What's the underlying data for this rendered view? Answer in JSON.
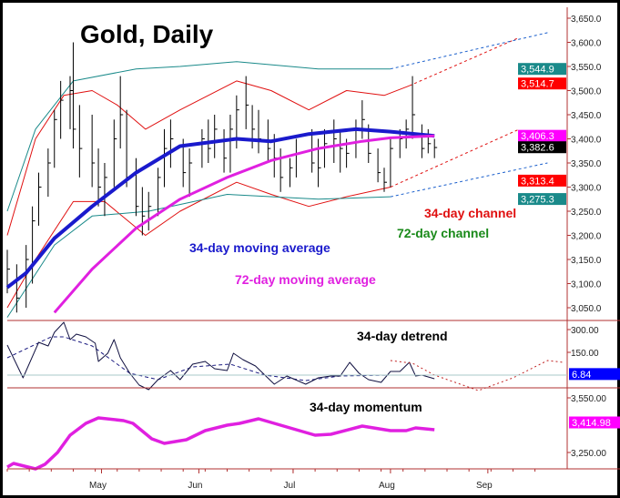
{
  "chart_data": {
    "type": "line",
    "title": "Gold, Daily",
    "price_panel": {
      "ylim": [
        3020,
        3670
      ],
      "yticks": [
        "3,650.0",
        "3,600.0",
        "3,550.0",
        "3,500.0",
        "3,450.0",
        "3,400.0",
        "3,350.0",
        "3,300.0",
        "3,250.0",
        "3,200.0",
        "3,150.0",
        "3,100.0",
        "3,050.0"
      ],
      "ytick_values": [
        3650,
        3600,
        3550,
        3500,
        3450,
        3400,
        3350,
        3300,
        3250,
        3200,
        3150,
        3100,
        3050
      ],
      "bars": [
        [
          "Apr 1",
          3170,
          3080,
          3130
        ],
        [
          "Apr 4",
          3140,
          3040,
          3070
        ],
        [
          "Apr 7",
          3180,
          3050,
          3150
        ],
        [
          "Apr 9",
          3260,
          3100,
          3230
        ],
        [
          "Apr 11",
          3330,
          3220,
          3300
        ],
        [
          "Apr 14",
          3380,
          3280,
          3350
        ],
        [
          "Apr 16",
          3460,
          3340,
          3440
        ],
        [
          "Apr 18",
          3520,
          3400,
          3480
        ],
        [
          "Apr 21",
          3530,
          3420,
          3500
        ],
        [
          "Apr 22",
          3600,
          3380,
          3420
        ],
        [
          "Apr 24",
          3470,
          3320,
          3380
        ],
        [
          "Apr 28",
          3450,
          3300,
          3350
        ],
        [
          "Apr 30",
          3380,
          3260,
          3300
        ],
        [
          "May 2",
          3350,
          3240,
          3320
        ],
        [
          "May 5",
          3440,
          3300,
          3400
        ],
        [
          "May 7",
          3530,
          3380,
          3450
        ],
        [
          "May 9",
          3460,
          3300,
          3320
        ],
        [
          "May 12",
          3360,
          3240,
          3260
        ],
        [
          "May 14",
          3300,
          3200,
          3240
        ],
        [
          "May 16",
          3290,
          3210,
          3260
        ],
        [
          "May 19",
          3340,
          3240,
          3320
        ],
        [
          "May 21",
          3420,
          3300,
          3380
        ],
        [
          "May 23",
          3440,
          3340,
          3400
        ],
        [
          "May 27",
          3400,
          3300,
          3330
        ],
        [
          "May 29",
          3380,
          3280,
          3350
        ],
        [
          "Jun 2",
          3420,
          3340,
          3400
        ],
        [
          "Jun 4",
          3440,
          3350,
          3380
        ],
        [
          "Jun 6",
          3450,
          3360,
          3420
        ],
        [
          "Jun 9",
          3420,
          3330,
          3360
        ],
        [
          "Jun 11",
          3450,
          3330,
          3420
        ],
        [
          "Jun 13",
          3490,
          3380,
          3460
        ],
        [
          "Jun 16",
          3530,
          3420,
          3470
        ],
        [
          "Jun 18",
          3470,
          3380,
          3420
        ],
        [
          "Jun 20",
          3460,
          3370,
          3400
        ],
        [
          "Jun 23",
          3440,
          3350,
          3380
        ],
        [
          "Jun 25",
          3410,
          3320,
          3360
        ],
        [
          "Jun 27",
          3380,
          3290,
          3320
        ],
        [
          "Jun 30",
          3360,
          3300,
          3340
        ],
        [
          "Jul 2",
          3400,
          3320,
          3370
        ],
        [
          "Jul 7",
          3420,
          3330,
          3350
        ],
        [
          "Jul 9",
          3400,
          3300,
          3340
        ],
        [
          "Jul 11",
          3420,
          3340,
          3390
        ],
        [
          "Jul 14",
          3440,
          3350,
          3400
        ],
        [
          "Jul 16",
          3420,
          3330,
          3380
        ],
        [
          "Jul 18",
          3400,
          3340,
          3370
        ],
        [
          "Jul 21",
          3440,
          3360,
          3420
        ],
        [
          "Jul 23",
          3480,
          3400,
          3440
        ],
        [
          "Jul 25",
          3430,
          3350,
          3370
        ],
        [
          "Jul 28",
          3380,
          3310,
          3330
        ],
        [
          "Jul 30",
          3340,
          3290,
          3310
        ],
        [
          "Aug 1",
          3400,
          3300,
          3380
        ],
        [
          "Aug 4",
          3420,
          3360,
          3400
        ],
        [
          "Aug 6",
          3440,
          3380,
          3420
        ],
        [
          "Aug 8",
          3530,
          3400,
          3450
        ],
        [
          "Aug 11",
          3430,
          3360,
          3380
        ],
        [
          "Aug 13",
          3420,
          3370,
          3390
        ],
        [
          "Aug 15",
          3400,
          3360,
          3382
        ]
      ],
      "series": [
        {
          "name": "34-day moving average",
          "color": "#1a1acc",
          "width": 4,
          "points": [
            [
              "Apr 1",
              3092
            ],
            [
              "Apr 7",
              3122
            ],
            [
              "Apr 16",
              3194
            ],
            [
              "Apr 28",
              3260
            ],
            [
              "May 12",
              3330
            ],
            [
              "May 26",
              3385
            ],
            [
              "Jun 13",
              3400
            ],
            [
              "Jun 24",
              3395
            ],
            [
              "Jul 6",
              3410
            ],
            [
              "Jul 21",
              3420
            ],
            [
              "Aug 1",
              3415
            ],
            [
              "Aug 15",
              3406
            ]
          ]
        },
        {
          "name": "72-day moving average",
          "color": "#e020e0",
          "width": 3,
          "points": [
            [
              "Apr 16",
              3040
            ],
            [
              "Apr 28",
              3130
            ],
            [
              "May 12",
              3215
            ],
            [
              "May 26",
              3275
            ],
            [
              "Jun 10",
              3320
            ],
            [
              "Jun 24",
              3355
            ],
            [
              "Jul 9",
              3380
            ],
            [
              "Jul 23",
              3395
            ],
            [
              "Aug 1",
              3402
            ],
            [
              "Aug 15",
              3406
            ]
          ]
        },
        {
          "name": "34-day channel",
          "color": "#e01010",
          "width": 1,
          "points": [
            [
              "Apr 1",
              3200
            ],
            [
              "Apr 10",
              3400
            ],
            [
              "Apr 19",
              3490
            ],
            [
              "Apr 28",
              3500
            ],
            [
              "May 6",
              3470
            ],
            [
              "May 15",
              3420
            ],
            [
              "May 26",
              3460
            ],
            [
              "Jun 13",
              3520
            ],
            [
              "Jun 24",
              3500
            ],
            [
              "Jul 6",
              3460
            ],
            [
              "Jul 18",
              3500
            ],
            [
              "Jul 30",
              3490
            ],
            [
              "Aug 7",
              3510
            ]
          ],
          "projection": [
            [
              "Aug 7",
              3510
            ],
            [
              "Sep 11",
              3610
            ]
          ]
        },
        {
          "name": "34-day channel",
          "color": "#e01010",
          "width": 1,
          "points": [
            [
              "Apr 1",
              3050
            ],
            [
              "Apr 10",
              3150
            ],
            [
              "Apr 22",
              3270
            ],
            [
              "May 2",
              3270
            ],
            [
              "May 15",
              3200
            ],
            [
              "May 26",
              3250
            ],
            [
              "Jun 13",
              3310
            ],
            [
              "Jun 24",
              3285
            ],
            [
              "Jul 6",
              3260
            ],
            [
              "Jul 18",
              3280
            ],
            [
              "Aug 1",
              3300
            ]
          ],
          "projection": [
            [
              "Aug 1",
              3300
            ],
            [
              "Sep 11",
              3420
            ]
          ]
        },
        {
          "name": "72-day channel",
          "color": "#1a8a8a",
          "width": 1,
          "points": [
            [
              "Apr 1",
              3250
            ],
            [
              "Apr 10",
              3420
            ],
            [
              "Apr 22",
              3520
            ],
            [
              "May 12",
              3545
            ],
            [
              "May 26",
              3550
            ],
            [
              "Jun 13",
              3560
            ],
            [
              "Jul 9",
              3545
            ],
            [
              "Aug 1",
              3545
            ]
          ],
          "projection": [
            [
              "Aug 1",
              3545
            ],
            [
              "Sep 20",
              3620
            ]
          ],
          "projection_color": "#1a5fcc"
        },
        {
          "name": "72-day channel",
          "color": "#1a8a8a",
          "width": 1,
          "points": [
            [
              "Apr 1",
              3030
            ],
            [
              "Apr 16",
              3180
            ],
            [
              "Apr 28",
              3240
            ],
            [
              "May 16",
              3250
            ],
            [
              "Jun 10",
              3285
            ],
            [
              "Jul 9",
              3275
            ],
            [
              "Aug 1",
              3280
            ]
          ],
          "projection": [
            [
              "Aug 1",
              3280
            ],
            [
              "Sep 20",
              3350
            ]
          ],
          "projection_color": "#1a5fcc"
        }
      ],
      "labels": [
        {
          "text": "34-day moving average",
          "color": "#1a1acc"
        },
        {
          "text": "72-day moving average",
          "color": "#e020e0"
        },
        {
          "text": "34-day channel",
          "color": "#e01010"
        },
        {
          "text": "72-day channel",
          "color": "#1a8a1a"
        }
      ],
      "price_tags": [
        {
          "text": "3,544.9",
          "value": 3544.9,
          "bg": "#1a8a8a"
        },
        {
          "text": "3,514.7",
          "value": 3514.7,
          "bg": "#ff0000"
        },
        {
          "text": "3,406.3",
          "value": 3406.3,
          "bg": "#ff00ff"
        },
        {
          "text": "3,382.6",
          "value": 3382.6,
          "bg": "#000000"
        },
        {
          "text": "3,313.4",
          "value": 3313.4,
          "bg": "#ff0000"
        },
        {
          "text": "3,275.3",
          "value": 3275.3,
          "bg": "#1a8a8a"
        }
      ]
    },
    "detrend_panel": {
      "label": "34-day detrend",
      "yticks": [
        "300.00",
        "150.00"
      ],
      "ytick_values": [
        300,
        150
      ],
      "tag": {
        "text": "6.84",
        "value": 6.84,
        "bg": "#0000ff"
      },
      "detrend": [
        [
          "Apr 1",
          198
        ],
        [
          "Apr 6",
          -18
        ],
        [
          "Apr 11",
          216
        ],
        [
          "Apr 14",
          192
        ],
        [
          "Apr 16",
          282
        ],
        [
          "Apr 19",
          348
        ],
        [
          "Apr 21",
          234
        ],
        [
          "Apr 23",
          270
        ],
        [
          "Apr 26",
          252
        ],
        [
          "Apr 29",
          210
        ],
        [
          "Apr 30",
          90
        ],
        [
          "May 3",
          144
        ],
        [
          "May 5",
          234
        ],
        [
          "May 7",
          114
        ],
        [
          "May 10",
          12
        ],
        [
          "May 13",
          -66
        ],
        [
          "May 16",
          -96
        ],
        [
          "May 19",
          -30
        ],
        [
          "May 23",
          30
        ],
        [
          "May 26",
          -30
        ],
        [
          "May 30",
          72
        ],
        [
          "Jun 3",
          90
        ],
        [
          "Jun 6",
          42
        ],
        [
          "Jun 10",
          30
        ],
        [
          "Jun 12",
          144
        ],
        [
          "Jun 15",
          102
        ],
        [
          "Jun 19",
          60
        ],
        [
          "Jun 22",
          0
        ],
        [
          "Jun 25",
          -60
        ],
        [
          "Jun 29",
          -6
        ],
        [
          "Jul 5",
          -60
        ],
        [
          "Jul 9",
          -18
        ],
        [
          "Jul 13",
          -6
        ],
        [
          "Jul 16",
          -6
        ],
        [
          "Jul 19",
          84
        ],
        [
          "Jul 22",
          12
        ],
        [
          "Jul 25",
          -30
        ],
        [
          "Jul 29",
          -48
        ],
        [
          "Aug 1",
          24
        ],
        [
          "Aug 4",
          24
        ],
        [
          "Aug 7",
          84
        ],
        [
          "Aug 9",
          -6
        ],
        [
          "Aug 11",
          0
        ],
        [
          "Aug 15",
          -24
        ]
      ],
      "average": [
        [
          "Apr 1",
          114
        ],
        [
          "Apr 15",
          252
        ],
        [
          "Apr 19",
          252
        ],
        [
          "Apr 28",
          192
        ],
        [
          "May 10",
          12
        ],
        [
          "May 19",
          -30
        ],
        [
          "May 30",
          54
        ],
        [
          "Jun 11",
          72
        ],
        [
          "Jun 22",
          0
        ],
        [
          "Jul 5",
          -36
        ],
        [
          "Jul 16",
          -6
        ],
        [
          "Aug 1",
          0
        ],
        [
          "Aug 15",
          0
        ]
      ],
      "projection": [
        [
          "Aug 1",
          96
        ],
        [
          "Aug 8",
          78
        ],
        [
          "Aug 15",
          0
        ],
        [
          "Aug 29",
          -102
        ],
        [
          "Sep 9",
          -18
        ],
        [
          "Sep 20",
          96
        ],
        [
          "Sep 25",
          84
        ]
      ]
    },
    "momentum_panel": {
      "label": "34-day momentum",
      "yticks": [
        "3,550.00",
        "3,250.00"
      ],
      "ytick_values": [
        3550,
        3250
      ],
      "tag": {
        "text": "3,414.98",
        "value": 3414.98,
        "bg": "#ff00ff"
      },
      "points": [
        [
          "Apr 1",
          3170
        ],
        [
          "Apr 3",
          3190
        ],
        [
          "Apr 10",
          3160
        ],
        [
          "Apr 13",
          3185
        ],
        [
          "Apr 17",
          3250
        ],
        [
          "Apr 21",
          3345
        ],
        [
          "Apr 26",
          3410
        ],
        [
          "Apr 30",
          3440
        ],
        [
          "May 8",
          3425
        ],
        [
          "May 11",
          3410
        ],
        [
          "May 17",
          3325
        ],
        [
          "May 21",
          3300
        ],
        [
          "May 28",
          3320
        ],
        [
          "Jun 3",
          3370
        ],
        [
          "Jun 10",
          3400
        ],
        [
          "Jun 14",
          3410
        ],
        [
          "Jun 20",
          3435
        ],
        [
          "Jun 28",
          3395
        ],
        [
          "Jul 8",
          3345
        ],
        [
          "Jul 13",
          3350
        ],
        [
          "Jul 23",
          3395
        ],
        [
          "Aug 1",
          3370
        ],
        [
          "Aug 6",
          3370
        ],
        [
          "Aug 9",
          3385
        ],
        [
          "Aug 15",
          3375
        ]
      ]
    },
    "x_axis": {
      "ticks": [
        "May",
        "Jun",
        "Jul",
        "Aug",
        "Sep"
      ]
    }
  }
}
